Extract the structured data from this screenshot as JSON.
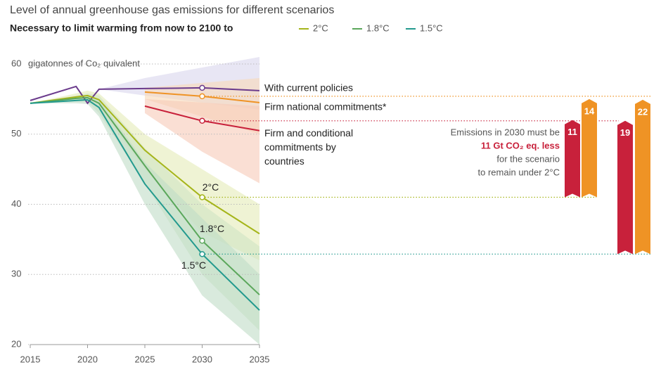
{
  "chart_data": {
    "type": "line",
    "title": "Level of annual greenhouse gas emissions for different scenarios",
    "subtitle": "Necessary to limit warming from now to 2100 to",
    "y_unit_label": "gigatonnes of Co₂ quivalent",
    "annotation": [
      "Emissions in 2030 must be",
      "11 Gt CO₂ eq. less",
      "for the scenario",
      "to remain under 2°C"
    ],
    "x": [
      2015,
      2019,
      2020,
      2021,
      2025,
      2030,
      2035
    ],
    "xlim": [
      2015,
      2035
    ],
    "xticks": [
      2015,
      2020,
      2025,
      2030,
      2035
    ],
    "ylim": [
      20,
      60
    ],
    "yticks": [
      20,
      30,
      40,
      50,
      60
    ],
    "grid": true,
    "series": [
      {
        "name": "With current policies",
        "color": "#6b3b8c",
        "band_color": "#d9d6ec",
        "values": [
          54.8,
          56.8,
          54.4,
          56.4,
          56.5,
          56.6,
          56.2
        ],
        "band_low": [
          null,
          null,
          null,
          56.4,
          55.5,
          54.5,
          53.5
        ],
        "band_high": [
          null,
          null,
          null,
          56.4,
          58.0,
          59.5,
          61.0
        ]
      },
      {
        "name": "Firm national commitments*",
        "color": "#ef9325",
        "band_color": "#f9d9b8",
        "values": [
          null,
          null,
          null,
          null,
          56.0,
          55.4,
          54.5
        ],
        "band_low": [
          null,
          null,
          null,
          null,
          55.0,
          52.5,
          50.0
        ],
        "band_high": [
          null,
          null,
          null,
          null,
          56.6,
          57.3,
          58.0
        ]
      },
      {
        "name": "Firm and conditional commitments by countries",
        "color": "#c8213b",
        "band_color": "#f6c9b7",
        "values": [
          null,
          null,
          null,
          null,
          54.0,
          51.9,
          50.5
        ],
        "band_low": [
          null,
          null,
          null,
          null,
          53.0,
          47.5,
          43.0
        ],
        "band_high": [
          null,
          null,
          null,
          null,
          55.0,
          54.5,
          54.0
        ]
      },
      {
        "name": "2°C",
        "color": "#a5b51a",
        "band_color": "#e4ebb8",
        "values": [
          54.4,
          55.3,
          55.5,
          54.9,
          47.7,
          41.0,
          35.8
        ],
        "band_low": [
          54.4,
          54.9,
          55.0,
          53.8,
          45.0,
          36.0,
          32.0
        ],
        "band_high": [
          54.4,
          55.8,
          56.2,
          55.8,
          50.0,
          45.0,
          40.0
        ],
        "gap_values": [
          11,
          14
        ]
      },
      {
        "name": "1.8°C",
        "color": "#5ba75b",
        "band_color": "#cfe4c3",
        "values": [
          54.4,
          55.1,
          55.2,
          54.4,
          45.5,
          34.8,
          27.1
        ],
        "band_low": [
          54.4,
          54.7,
          54.6,
          53.0,
          43.0,
          30.0,
          22.0
        ],
        "band_high": [
          54.4,
          55.5,
          55.8,
          55.5,
          48.0,
          40.0,
          34.0
        ]
      },
      {
        "name": "1.5°C",
        "color": "#239a8e",
        "band_color": "#bfdcc6",
        "values": [
          54.4,
          54.8,
          54.9,
          53.8,
          42.9,
          32.9,
          24.9
        ],
        "band_low": [
          54.4,
          54.4,
          54.3,
          52.5,
          40.0,
          27.0,
          20.0
        ],
        "band_high": [
          54.4,
          55.2,
          55.5,
          55.0,
          46.0,
          38.0,
          30.0
        ],
        "gap_values": [
          19,
          22
        ]
      }
    ]
  }
}
